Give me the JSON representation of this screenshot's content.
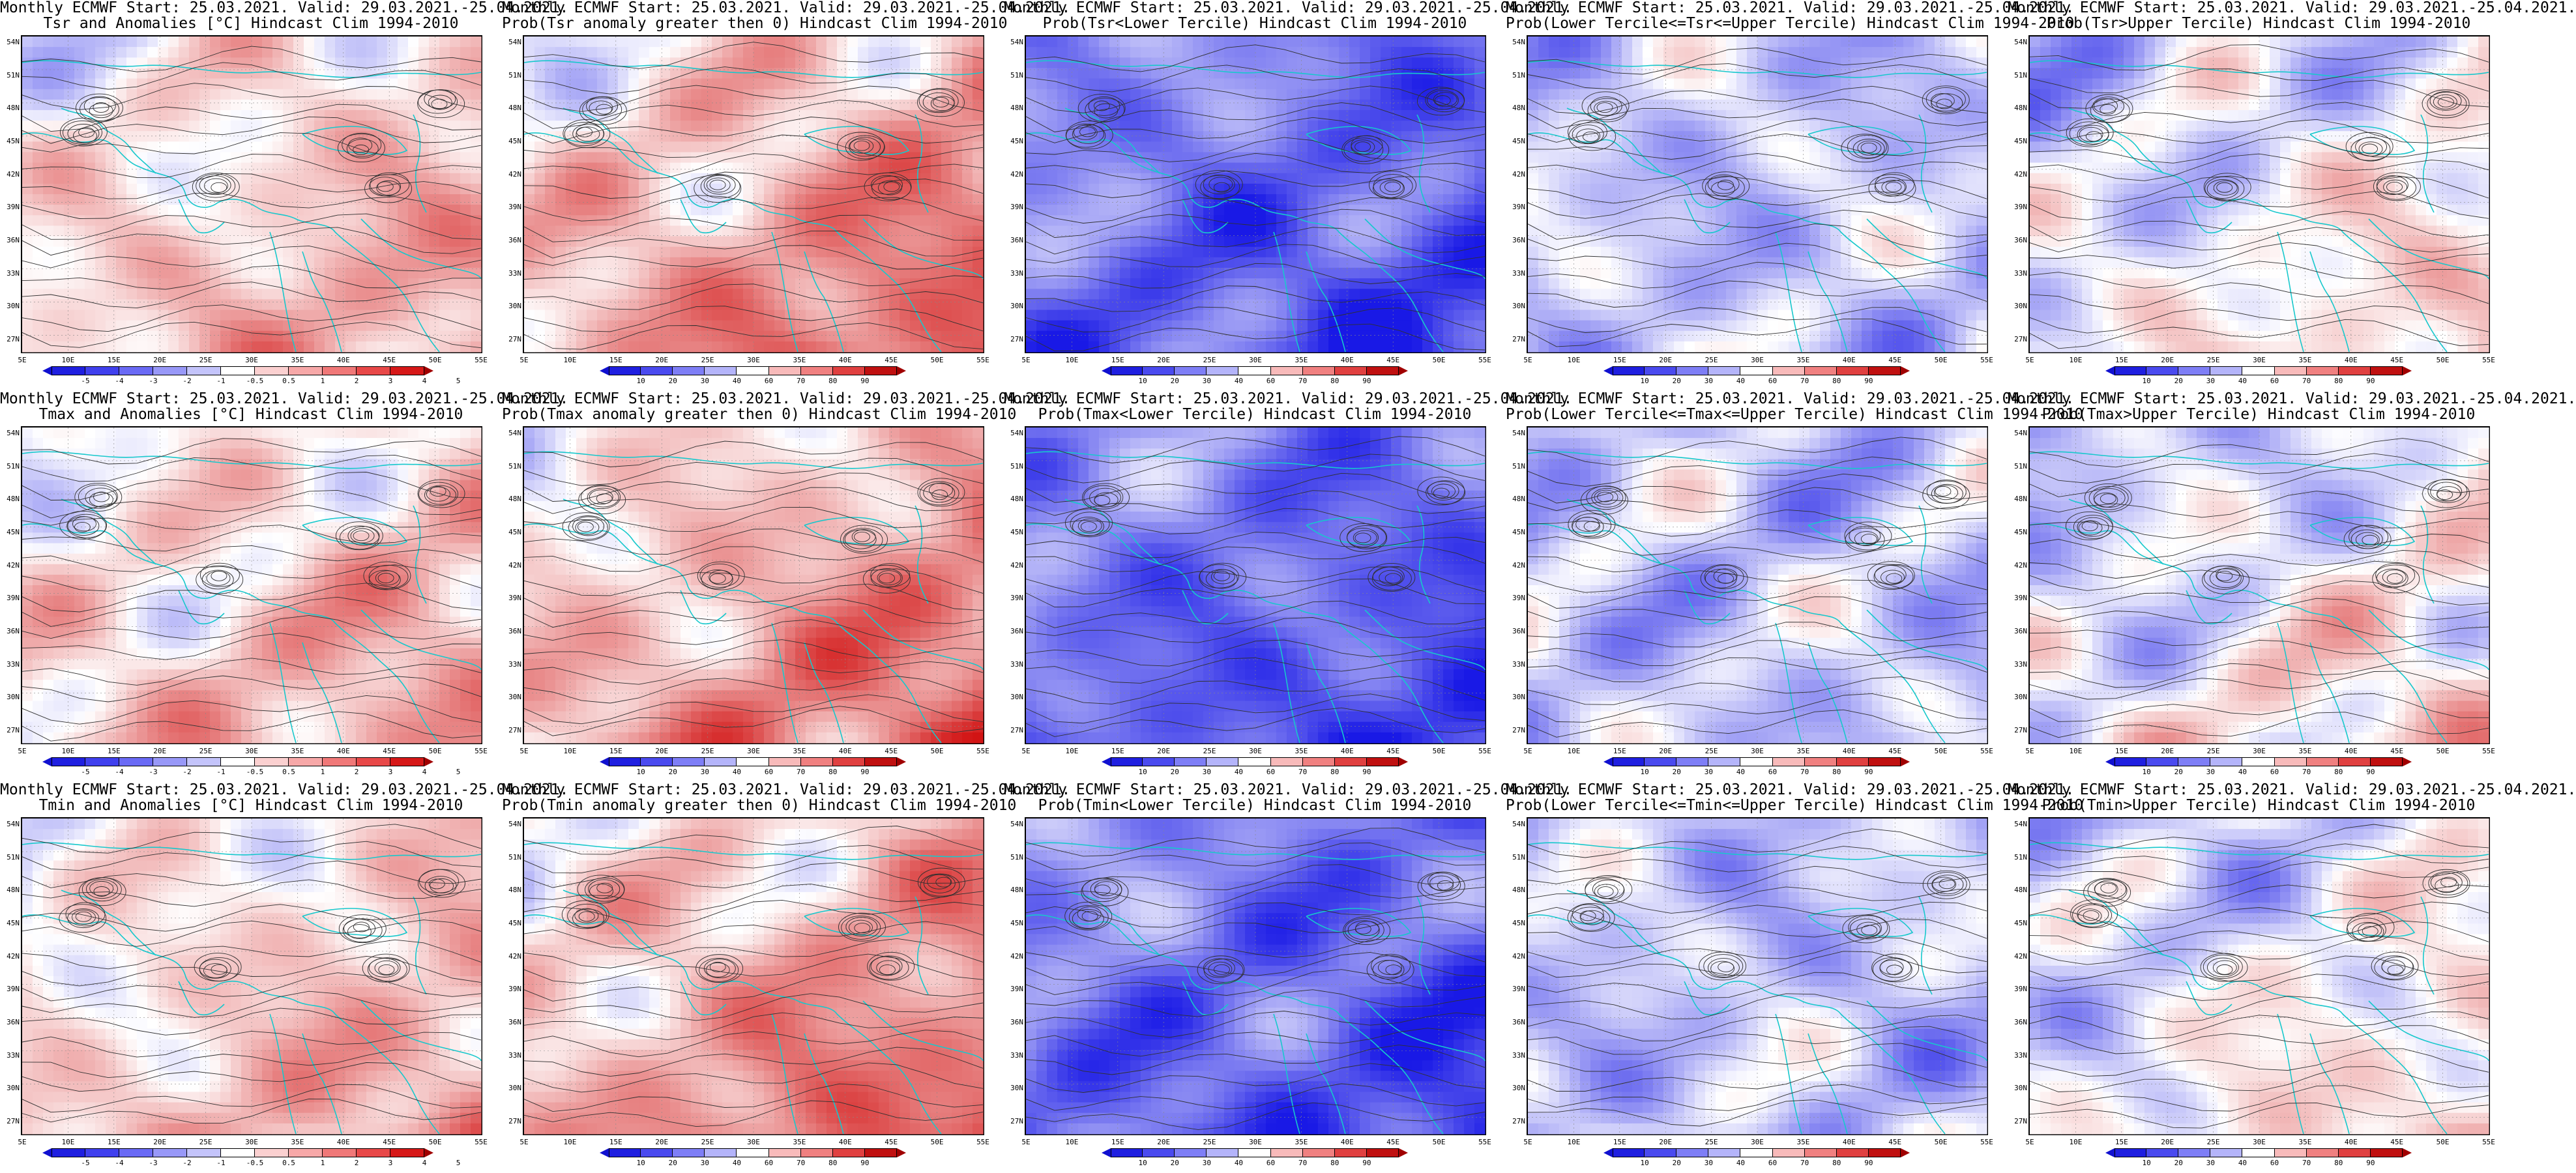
{
  "panels": [
    {
      "line1": "Monthly ECMWF Start: 25.03.2021. Valid: 29.03.2021.-25.04.2021.",
      "line2": "Tsr and Anomalies [°C] Hindcast Clim 1994-2010",
      "legend": "anomaly",
      "field": "anom"
    },
    {
      "line1": "Monthly ECMWF Start: 25.03.2021. Valid: 29.03.2021.-25.04.2021.",
      "line2": "Prob(Tsr anomaly greater then 0) Hindcast Clim 1994-2010",
      "legend": "prob",
      "field": "warm"
    },
    {
      "line1": "Monthly ECMWF Start: 25.03.2021. Valid: 29.03.2021.-25.04.2021.",
      "line2": "Prob(Tsr<Lower Tercile) Hindcast Clim 1994-2010",
      "legend": "prob",
      "field": "cold"
    },
    {
      "line1": "Monthly ECMWF Start: 25.03.2021. Valid: 29.03.2021.-25.04.2021.",
      "line2": "Prob(Lower Tercile<=Tsr<=Upper Tercile) Hindcast Clim 1994-2010",
      "legend": "prob",
      "field": "mid"
    },
    {
      "line1": "Monthly ECMWF Start: 25.03.2021. Valid: 29.03.2021.-25.04.2021.",
      "line2": "Prob(Tsr>Upper Tercile) Hindcast Clim 1994-2010",
      "legend": "prob",
      "field": "upper"
    },
    {
      "line1": "Monthly ECMWF Start: 25.03.2021. Valid: 29.03.2021.-25.04.2021.",
      "line2": "Tmax and Anomalies [°C] Hindcast Clim 1994-2010",
      "legend": "anomaly",
      "field": "anom"
    },
    {
      "line1": "Monthly ECMWF Start: 25.03.2021. Valid: 29.03.2021.-25.04.2021.",
      "line2": "Prob(Tmax anomaly greater then 0) Hindcast Clim 1994-2010",
      "legend": "prob",
      "field": "warm"
    },
    {
      "line1": "Monthly ECMWF Start: 25.03.2021. Valid: 29.03.2021.-25.04.2021.",
      "line2": "Prob(Tmax<Lower Tercile) Hindcast Clim 1994-2010",
      "legend": "prob",
      "field": "cold"
    },
    {
      "line1": "Monthly ECMWF Start: 25.03.2021. Valid: 29.03.2021.-25.04.2021.",
      "line2": "Prob(Lower Tercile<=Tmax<=Upper Tercile) Hindcast Clim 1994-2010",
      "legend": "prob",
      "field": "mid"
    },
    {
      "line1": "Monthly ECMWF Start: 25.03.2021. Valid: 29.03.2021.-25.04.2021.",
      "line2": "Prob(Tmax>Upper Tercile) Hindcast Clim 1994-2010",
      "legend": "prob",
      "field": "upper"
    },
    {
      "line1": "Monthly ECMWF Start: 25.03.2021. Valid: 29.03.2021.-25.04.2021.",
      "line2": "Tmin and Anomalies [°C] Hindcast Clim 1994-2010",
      "legend": "anomaly",
      "field": "anom"
    },
    {
      "line1": "Monthly ECMWF Start: 25.03.2021. Valid: 29.03.2021.-25.04.2021.",
      "line2": "Prob(Tmin anomaly greater then 0) Hindcast Clim 1994-2010",
      "legend": "prob",
      "field": "warm"
    },
    {
      "line1": "Monthly ECMWF Start: 25.03.2021. Valid: 29.03.2021.-25.04.2021.",
      "line2": "Prob(Tmin<Lower Tercile) Hindcast Clim 1994-2010",
      "legend": "prob",
      "field": "cold"
    },
    {
      "line1": "Monthly ECMWF Start: 25.03.2021. Valid: 29.03.2021.-25.04.2021.",
      "line2": "Prob(Lower Tercile<=Tmin<=Upper Tercile) Hindcast Clim 1994-2010",
      "legend": "prob",
      "field": "mid"
    },
    {
      "line1": "Monthly ECMWF Start: 25.03.2021. Valid: 29.03.2021.-25.04.2021.",
      "line2": "Prob(Tmin>Upper Tercile) Hindcast Clim 1994-2010",
      "legend": "prob",
      "field": "upper"
    }
  ],
  "lat_labels": [
    "54N",
    "51N",
    "48N",
    "45N",
    "42N",
    "39N",
    "36N",
    "33N",
    "30N",
    "27N"
  ],
  "lon_labels": [
    "5E",
    "10E",
    "15E",
    "20E",
    "25E",
    "30E",
    "35E",
    "40E",
    "45E",
    "50E",
    "55E"
  ],
  "legends": {
    "anomaly": {
      "ticks": [
        "-5",
        "-4",
        "-3",
        "-2",
        "-1",
        "-0.5",
        "0.5",
        "1",
        "2",
        "3",
        "4",
        "5"
      ],
      "colors": [
        "#1f1fe0",
        "#4040ee",
        "#6a6af5",
        "#9898f8",
        "#c4c4fb",
        "#ffffff",
        "#fbd0d0",
        "#f7a8a8",
        "#f07878",
        "#e84848",
        "#d61818"
      ]
    },
    "prob": {
      "ticks": [
        "10",
        "20",
        "30",
        "40",
        "60",
        "70",
        "80",
        "90"
      ],
      "colors": [
        "#1f1fe0",
        "#4a4aef",
        "#7e7ef6",
        "#b4b4fa",
        "#ffffff",
        "#f8baba",
        "#f08080",
        "#e04040",
        "#c01010"
      ]
    }
  },
  "palette": {
    "coast": "#17c8cc",
    "contour": "#303030",
    "frame": "#000000"
  }
}
